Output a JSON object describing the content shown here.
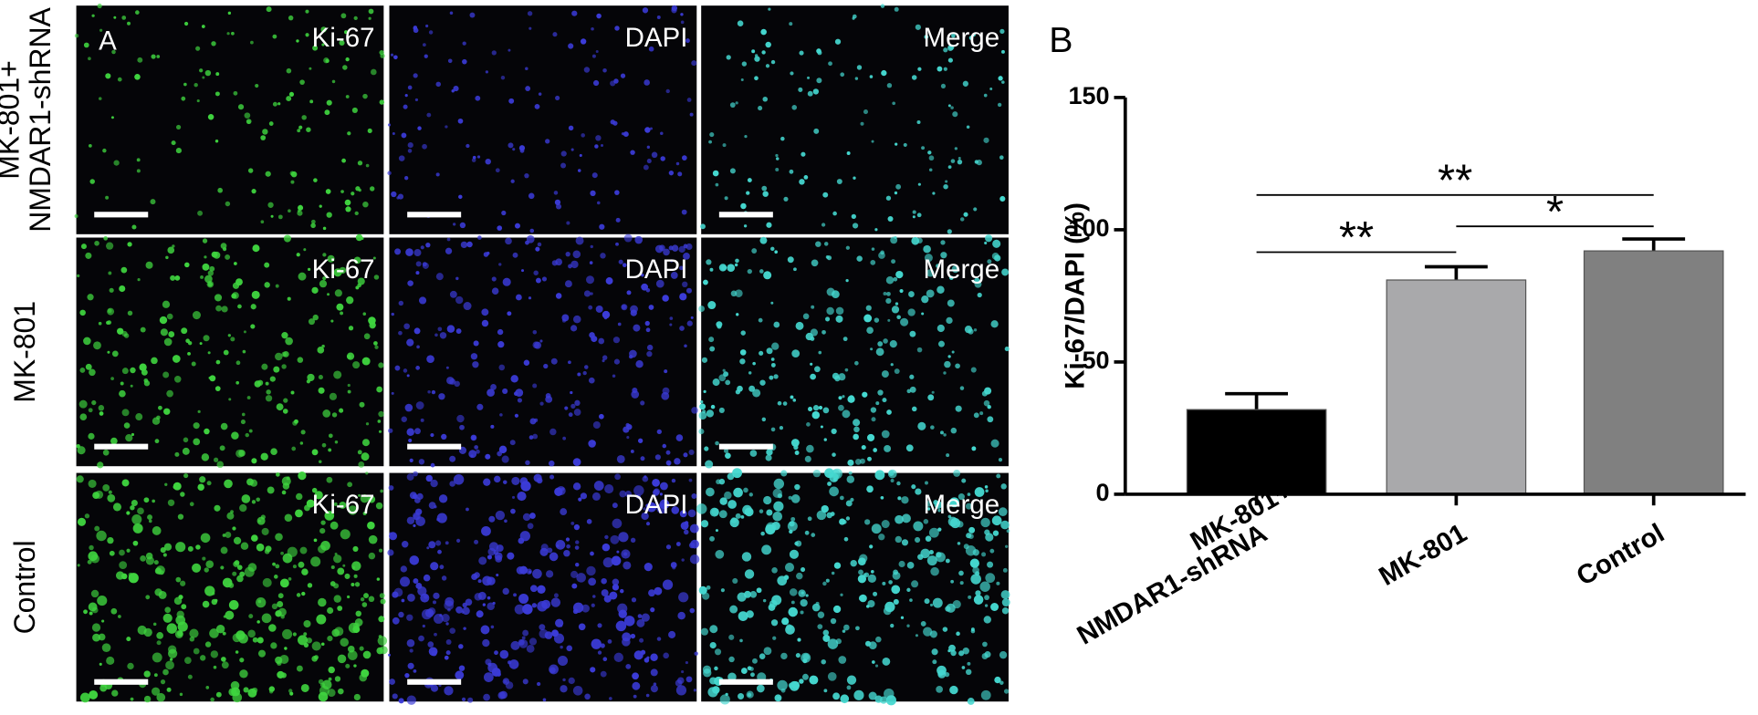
{
  "panel_a": {
    "letter": "A",
    "rows": [
      [
        "MK-801+",
        "NMDAR1-shRNA"
      ],
      [
        "MK-801"
      ],
      [
        "Control"
      ]
    ],
    "columns": [
      "Ki-67",
      "DAPI",
      "Merge"
    ]
  },
  "chart_data": {
    "type": "bar",
    "panel_label": "B",
    "y_label": "Ki-67/DAPI (%)",
    "categories": [
      [
        "MK-801+",
        "NMDAR1-shRNA"
      ],
      [
        "MK-801"
      ],
      [
        "Control"
      ]
    ],
    "values": [
      32,
      81,
      92
    ],
    "errors": [
      6,
      5,
      4.5
    ],
    "colors": [
      "#000000",
      "#a9a9ab",
      "#808080"
    ],
    "ylim": [
      0,
      150
    ],
    "yticks": [
      0,
      50,
      100,
      150
    ],
    "significance": [
      {
        "from": 0,
        "to": 2,
        "label": "**"
      },
      {
        "from": 1,
        "to": 2,
        "label": "*"
      },
      {
        "from": 0,
        "to": 1,
        "label": "**"
      }
    ]
  }
}
